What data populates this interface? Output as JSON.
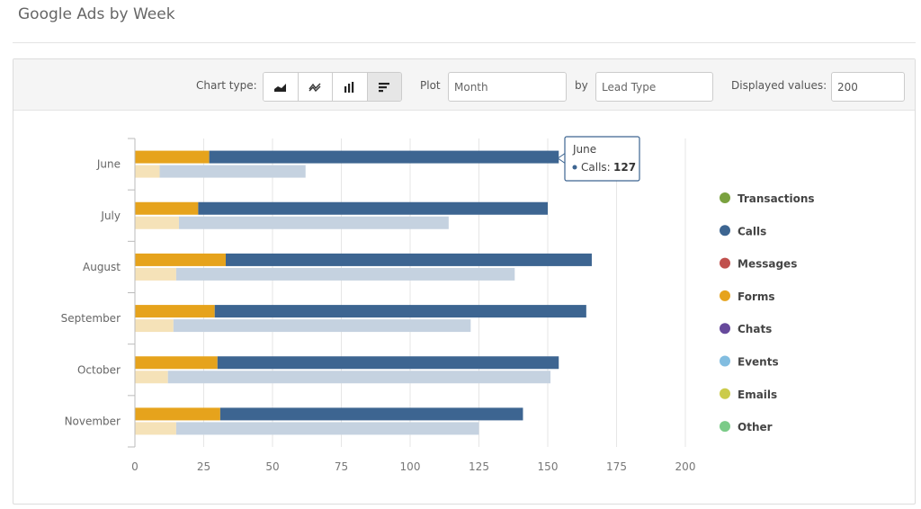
{
  "page": {
    "title": "Google Ads by Week"
  },
  "toolbar": {
    "chart_type_label": "Chart type:",
    "chart_types": [
      {
        "name": "area",
        "active": false
      },
      {
        "name": "line",
        "active": false
      },
      {
        "name": "column",
        "active": false
      },
      {
        "name": "bar",
        "active": true
      }
    ],
    "plot_label": "Plot",
    "plot_placeholder": "Month",
    "by_label": "by",
    "by_placeholder": "Lead Type",
    "displayed_label": "Displayed values:",
    "displayed_value": "200"
  },
  "colors": {
    "forms": "#e6a31c",
    "calls": "#3d6591",
    "forms_light": "#f5e2b8",
    "calls_light": "#c5d2e0",
    "grid": "#e6e6e6",
    "axis": "#bbbbbb"
  },
  "chart_data": {
    "type": "bar",
    "orientation": "horizontal",
    "stacked": true,
    "categories": [
      "June",
      "July",
      "August",
      "September",
      "October",
      "November"
    ],
    "series": [
      {
        "name": "Forms",
        "values": [
          27,
          23,
          33,
          29,
          30,
          31
        ]
      },
      {
        "name": "Calls",
        "values": [
          127,
          127,
          133,
          135,
          124,
          110
        ]
      }
    ],
    "comparison_series": [
      {
        "name": "Forms",
        "values": [
          9,
          16,
          15,
          14,
          12,
          15
        ]
      },
      {
        "name": "Calls",
        "values": [
          53,
          98,
          123,
          108,
          139,
          110
        ]
      }
    ],
    "xlim": [
      0,
      200
    ],
    "xticks": [
      "0",
      "25",
      "50",
      "75",
      "100",
      "125",
      "150",
      "175",
      "200"
    ],
    "grid": true,
    "legend_position": "right",
    "legend": [
      {
        "name": "Transactions",
        "color": "#7aa13f"
      },
      {
        "name": "Calls",
        "color": "#3d6591"
      },
      {
        "name": "Messages",
        "color": "#c0504d"
      },
      {
        "name": "Forms",
        "color": "#e6a31c"
      },
      {
        "name": "Chats",
        "color": "#674a9c"
      },
      {
        "name": "Events",
        "color": "#82bde0"
      },
      {
        "name": "Emails",
        "color": "#cbcb4b"
      },
      {
        "name": "Other",
        "color": "#7bcb88"
      }
    ],
    "tooltip": {
      "category": "June",
      "series": "Calls",
      "label": "Calls:",
      "value": "127"
    }
  }
}
